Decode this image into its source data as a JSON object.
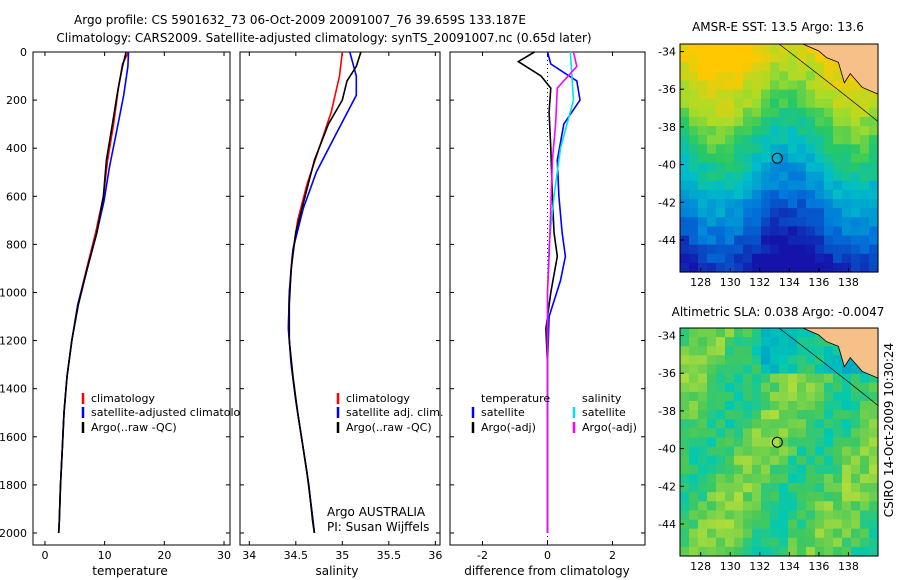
{
  "title": {
    "line1": "Argo profile: CS 5901632_73 06-Oct-2009 20091007_76 39.659S 133.187E",
    "line2": "Climatology: CARS2009. Satellite-adjusted climatology: synTS_20091007.nc (0.65d later)"
  },
  "colors": {
    "climatology": "#ff0000",
    "satellite": "#0000ff",
    "argo": "#000000",
    "salinity_sat": "#00e5e5",
    "salinity_argo": "#ff00ff"
  },
  "pressure_ticks": [
    0,
    200,
    400,
    600,
    800,
    1000,
    1200,
    1400,
    1600,
    1800,
    2000
  ],
  "chart_data": [
    {
      "type": "line",
      "xlabel": "temperature",
      "ylabel": "",
      "xlim": [
        -2,
        31
      ],
      "ylim": [
        0,
        2050
      ],
      "xticks": [
        0,
        10,
        20,
        30
      ],
      "xticklabels": [
        "0",
        "10",
        "20",
        "30"
      ],
      "legend": [
        "climatology",
        "satellite-adjusted climatology",
        "Argo(..raw -QC)"
      ],
      "series": [
        {
          "name": "climatology",
          "color": "#ff0000",
          "points": [
            [
              14,
              0
            ],
            [
              13,
              50
            ],
            [
              12.3,
              150
            ],
            [
              11.5,
              300
            ],
            [
              10.5,
              450
            ],
            [
              9.8,
              600
            ],
            [
              8.5,
              750
            ],
            [
              7,
              900
            ],
            [
              5.5,
              1050
            ],
            [
              4.5,
              1200
            ],
            [
              3.7,
              1350
            ],
            [
              3.2,
              1500
            ],
            [
              2.9,
              1650
            ],
            [
              2.6,
              1800
            ],
            [
              2.4,
              1950
            ],
            [
              2.3,
              2000
            ]
          ]
        },
        {
          "name": "satellite-adjusted climatology",
          "color": "#0000ff",
          "points": [
            [
              14,
              0
            ],
            [
              13.9,
              60
            ],
            [
              13.2,
              180
            ],
            [
              12,
              330
            ],
            [
              10.8,
              480
            ],
            [
              9.9,
              620
            ],
            [
              8.6,
              760
            ],
            [
              7.1,
              900
            ],
            [
              5.5,
              1050
            ],
            [
              4.5,
              1200
            ],
            [
              3.7,
              1350
            ],
            [
              3.2,
              1500
            ],
            [
              2.9,
              1650
            ],
            [
              2.6,
              1800
            ],
            [
              2.4,
              1950
            ],
            [
              2.3,
              2000
            ]
          ]
        },
        {
          "name": "Argo(..raw -QC)",
          "color": "#000000",
          "points": [
            [
              13.6,
              0
            ],
            [
              13,
              60
            ],
            [
              12.2,
              160
            ],
            [
              11.3,
              300
            ],
            [
              10.3,
              450
            ],
            [
              9.8,
              600
            ],
            [
              8.7,
              750
            ],
            [
              7.1,
              900
            ],
            [
              5.6,
              1050
            ],
            [
              4.5,
              1200
            ],
            [
              3.7,
              1350
            ],
            [
              3.2,
              1500
            ],
            [
              2.9,
              1650
            ],
            [
              2.6,
              1800
            ],
            [
              2.4,
              1950
            ],
            [
              2.3,
              2000
            ]
          ]
        }
      ]
    },
    {
      "type": "line",
      "xlabel": "salinity",
      "ylabel": "",
      "xlim": [
        33.9,
        36.05
      ],
      "ylim": [
        0,
        2050
      ],
      "xticks": [
        34,
        34.5,
        35,
        35.5,
        36
      ],
      "xticklabels": [
        "34",
        "34.5",
        "35",
        "35.5",
        "36"
      ],
      "legend": [
        "climatology",
        "satellite adj. clim.",
        "Argo(..raw -QC)"
      ],
      "annotation": [
        "Argo AUSTRALIA",
        "PI: Susan Wijffels"
      ],
      "series": [
        {
          "name": "climatology",
          "color": "#ff0000",
          "points": [
            [
              35,
              0
            ],
            [
              34.97,
              100
            ],
            [
              34.88,
              250
            ],
            [
              34.75,
              400
            ],
            [
              34.62,
              550
            ],
            [
              34.52,
              700
            ],
            [
              34.46,
              850
            ],
            [
              34.43,
              1000
            ],
            [
              34.42,
              1150
            ],
            [
              34.45,
              1300
            ],
            [
              34.5,
              1450
            ],
            [
              34.56,
              1600
            ],
            [
              34.62,
              1750
            ],
            [
              34.67,
              1900
            ],
            [
              34.7,
              2000
            ]
          ]
        },
        {
          "name": "satellite adj. clim.",
          "color": "#0000ff",
          "points": [
            [
              35.08,
              0
            ],
            [
              35.15,
              100
            ],
            [
              35.15,
              180
            ],
            [
              34.92,
              350
            ],
            [
              34.72,
              500
            ],
            [
              34.58,
              650
            ],
            [
              34.47,
              820
            ],
            [
              34.43,
              1000
            ],
            [
              34.42,
              1150
            ],
            [
              34.45,
              1300
            ],
            [
              34.5,
              1450
            ],
            [
              34.56,
              1600
            ],
            [
              34.62,
              1750
            ],
            [
              34.67,
              1900
            ],
            [
              34.7,
              2000
            ]
          ]
        },
        {
          "name": "Argo(..raw -QC)",
          "color": "#000000",
          "points": [
            [
              35.2,
              0
            ],
            [
              35.15,
              60
            ],
            [
              35.05,
              120
            ],
            [
              35,
              200
            ],
            [
              34.85,
              300
            ],
            [
              34.7,
              450
            ],
            [
              34.6,
              600
            ],
            [
              34.5,
              750
            ],
            [
              34.45,
              900
            ],
            [
              34.43,
              1050
            ],
            [
              34.43,
              1200
            ],
            [
              34.47,
              1350
            ],
            [
              34.52,
              1500
            ],
            [
              34.58,
              1650
            ],
            [
              34.64,
              1800
            ],
            [
              34.68,
              1950
            ],
            [
              34.7,
              2000
            ]
          ]
        }
      ]
    },
    {
      "type": "line",
      "xlabel": "difference from climatology",
      "ylabel": "",
      "xlim": [
        -3,
        3
      ],
      "ylim": [
        0,
        2050
      ],
      "xticks": [
        -2,
        0,
        2
      ],
      "xticklabels": [
        "-2",
        "0",
        "2"
      ],
      "legend": [
        "temperature",
        "satellite",
        "Argo(-adj)",
        "salinity",
        "satellite",
        "Argo(-adj)"
      ],
      "series": [
        {
          "name": "temperature satellite",
          "color": "#0000ff",
          "points": [
            [
              0,
              0
            ],
            [
              0.1,
              50
            ],
            [
              0.9,
              120
            ],
            [
              1.0,
              200
            ],
            [
              0.5,
              300
            ],
            [
              0.3,
              450
            ],
            [
              0.35,
              600
            ],
            [
              0.45,
              750
            ],
            [
              0.55,
              850
            ],
            [
              0.4,
              950
            ],
            [
              0.05,
              1100
            ],
            [
              0,
              1300
            ],
            [
              0,
              2000
            ]
          ]
        },
        {
          "name": "temperature Argo(-adj)",
          "color": "#000000",
          "points": [
            [
              -0.4,
              0
            ],
            [
              -0.9,
              40
            ],
            [
              -0.2,
              100
            ],
            [
              0.1,
              150
            ],
            [
              0.05,
              250
            ],
            [
              0.1,
              400
            ],
            [
              0.15,
              600
            ],
            [
              0.2,
              750
            ],
            [
              0.3,
              850
            ],
            [
              0.1,
              1000
            ],
            [
              -0.05,
              1150
            ],
            [
              0,
              1300
            ],
            [
              0,
              2000
            ]
          ]
        },
        {
          "name": "salinity satellite",
          "color": "#00e5e5",
          "points": [
            [
              0.7,
              0
            ],
            [
              0.75,
              100
            ],
            [
              0.8,
              200
            ],
            [
              0.4,
              400
            ],
            [
              0.2,
              600
            ],
            [
              0.05,
              800
            ],
            [
              0,
              1000
            ],
            [
              0,
              1200
            ],
            [
              0,
              2000
            ]
          ]
        },
        {
          "name": "salinity Argo(-adj)",
          "color": "#ff00ff",
          "points": [
            [
              0.8,
              0
            ],
            [
              0.9,
              60
            ],
            [
              0.3,
              150
            ],
            [
              0.25,
              300
            ],
            [
              0.15,
              450
            ],
            [
              0.1,
              650
            ],
            [
              0.05,
              850
            ],
            [
              0,
              1000
            ],
            [
              0,
              2000
            ]
          ]
        }
      ]
    }
  ],
  "maps": {
    "xticklabels": [
      "128",
      "130",
      "132",
      "134",
      "136",
      "138"
    ],
    "yticklabels": [
      "-34",
      "-36",
      "-38",
      "-40",
      "-42",
      "-44"
    ],
    "sst": {
      "title": "AMSR-E SST: 13.5 Argo: 13.6"
    },
    "sla": {
      "title": "Altimetric SLA: 0.038 Argo: -0.0047"
    }
  },
  "side_label": "CSIRO 14-Oct-2009 10:30:24"
}
